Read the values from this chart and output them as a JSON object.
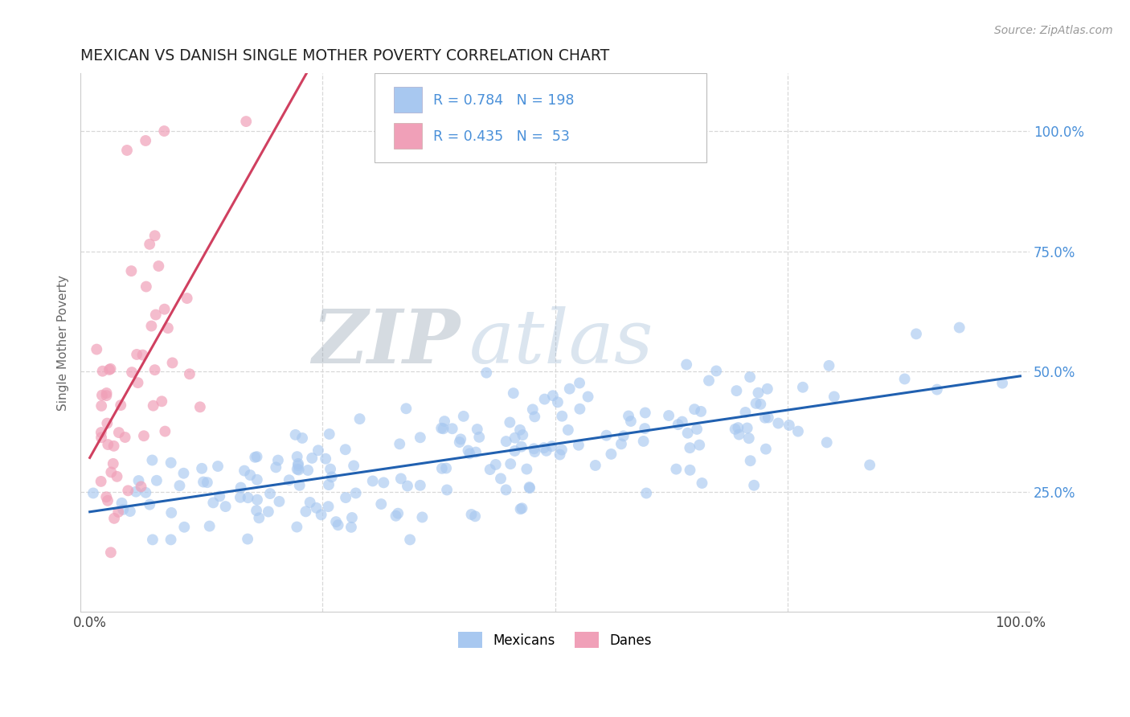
{
  "title": "MEXICAN VS DANISH SINGLE MOTHER POVERTY CORRELATION CHART",
  "source": "Source: ZipAtlas.com",
  "ylabel": "Single Mother Poverty",
  "legend_label1": "Mexicans",
  "legend_label2": "Danes",
  "R1": 0.784,
  "N1": 198,
  "R2": 0.435,
  "N2": 53,
  "color_mexican": "#a8c8f0",
  "color_danish": "#f0a0b8",
  "color_line_mexican": "#2060b0",
  "color_line_danish": "#d04060",
  "watermark_zip": "ZIP",
  "watermark_atlas": "atlas",
  "background_color": "#ffffff",
  "grid_color": "#d8d8d8",
  "seed": 7,
  "ylim_min": 0.0,
  "ylim_max": 1.12
}
